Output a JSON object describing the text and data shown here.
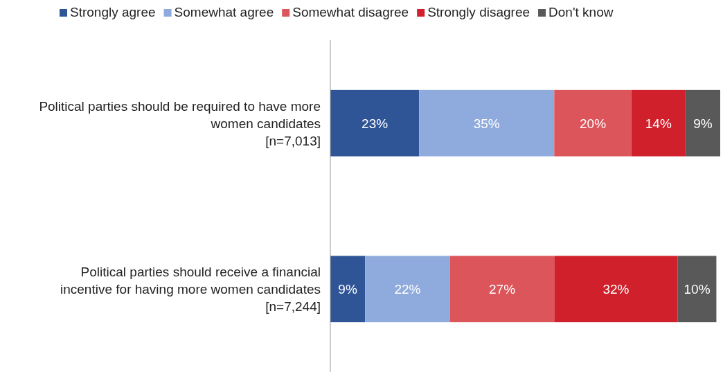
{
  "chart_data": {
    "type": "bar",
    "orientation": "horizontal",
    "stacked": true,
    "legend": "top",
    "categories": [
      "Political parties should be required to have more\nwomen candidates\n[n=7,013]",
      "Political parties should receive a financial\nincentive for having more women candidates\n[n=7,244]"
    ],
    "series": [
      {
        "name": "Strongly agree",
        "color": "#2f5597",
        "values": [
          23,
          9
        ],
        "value_labels": [
          "23%",
          "9%"
        ]
      },
      {
        "name": "Somewhat agree",
        "color": "#8faadc",
        "values": [
          35,
          22
        ],
        "value_labels": [
          "35%",
          "22%"
        ]
      },
      {
        "name": "Somewhat disagree",
        "color": "#dc555b",
        "values": [
          20,
          27
        ],
        "value_labels": [
          "20%",
          "27%"
        ]
      },
      {
        "name": "Strongly disagree",
        "color": "#d0202b",
        "values": [
          14,
          32
        ],
        "value_labels": [
          "14%",
          "32%"
        ]
      },
      {
        "name": "Don't know",
        "color": "#595959",
        "values": [
          9,
          10
        ],
        "value_labels": [
          "9%",
          "10%"
        ]
      }
    ]
  }
}
